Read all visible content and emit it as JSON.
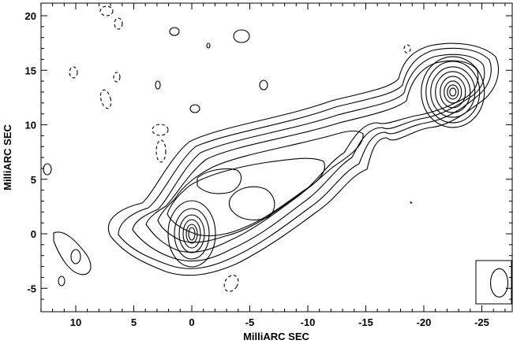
{
  "chart_data": {
    "type": "contour",
    "xlabel": "MilliARC SEC",
    "ylabel": "MilliARC SEC",
    "xlim": [
      14,
      -30
    ],
    "ylim": [
      -7,
      21
    ],
    "x_ticks": [
      10,
      5,
      0,
      -5,
      -10,
      -15,
      -20,
      -25
    ],
    "y_ticks": [
      -5,
      0,
      5,
      10,
      15,
      20
    ],
    "x_tick_labels": [
      "10",
      "5",
      "0",
      "-5",
      "-10",
      "-15",
      "-20",
      "-25"
    ],
    "y_tick_labels": [
      "-5",
      "0",
      "5",
      "10",
      "15",
      "20"
    ],
    "components": [
      {
        "name": "core",
        "x": 0,
        "y": 0,
        "levels": 6
      },
      {
        "name": "western_lobe",
        "x": -22.5,
        "y": 13,
        "levels": 8
      },
      {
        "name": "jet_ridge",
        "x": -5,
        "y": 5,
        "levels": 5
      }
    ],
    "beam": {
      "x": -26.5,
      "y": -4.5,
      "major": 2.6,
      "minor": 2.2
    },
    "negative_contours": true
  }
}
